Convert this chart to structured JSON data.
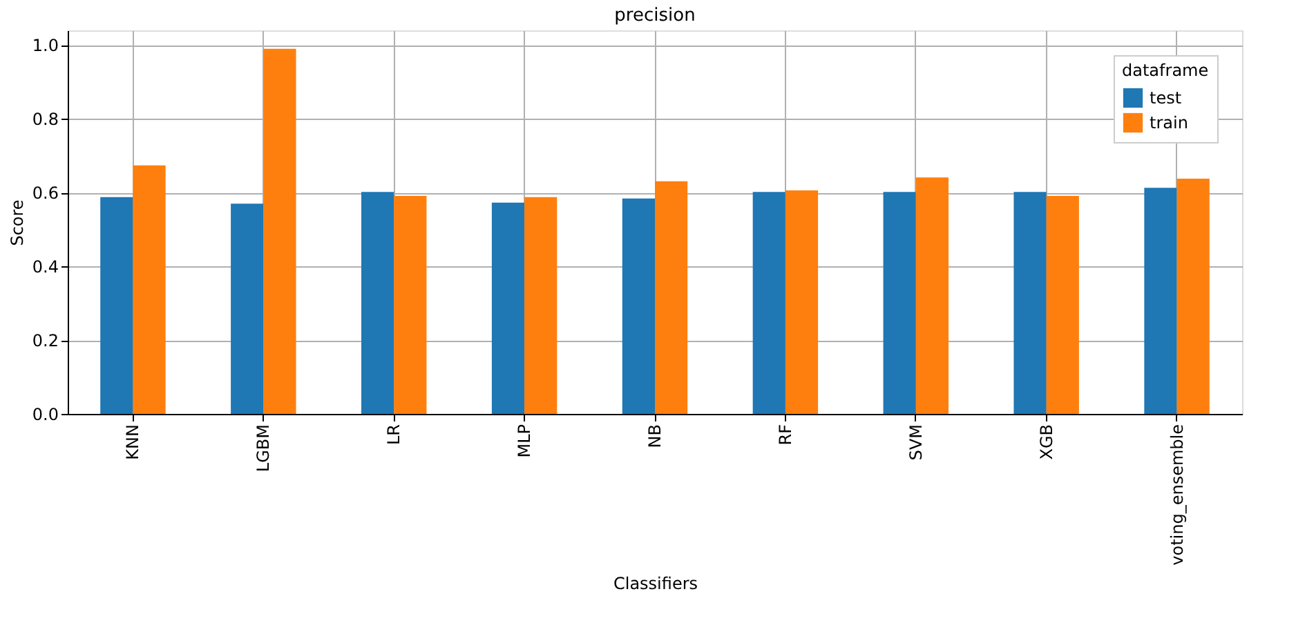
{
  "chart_data": {
    "type": "bar",
    "title": "precision",
    "xlabel": "Classifiers",
    "ylabel": "Score",
    "legend_title": "dataframe",
    "categories": [
      "KNN",
      "LGBM",
      "LR",
      "MLP",
      "NB",
      "RF",
      "SVM",
      "XGB",
      "voting_ensemble"
    ],
    "series": [
      {
        "name": "test",
        "color": "#1f77b4",
        "values": [
          0.588,
          0.57,
          0.602,
          0.573,
          0.584,
          0.602,
          0.602,
          0.602,
          0.613
        ]
      },
      {
        "name": "train",
        "color": "#ff7f0e",
        "values": [
          0.674,
          0.99,
          0.591,
          0.588,
          0.631,
          0.606,
          0.641,
          0.591,
          0.638
        ]
      }
    ],
    "ylim": [
      0,
      1.04
    ],
    "yticks": [
      {
        "value": 0,
        "label": "0.0"
      },
      0.2,
      0.4,
      0.6,
      0.8,
      {
        "value": 1,
        "label": "1.0"
      }
    ],
    "grid": true,
    "legend": "top right"
  }
}
